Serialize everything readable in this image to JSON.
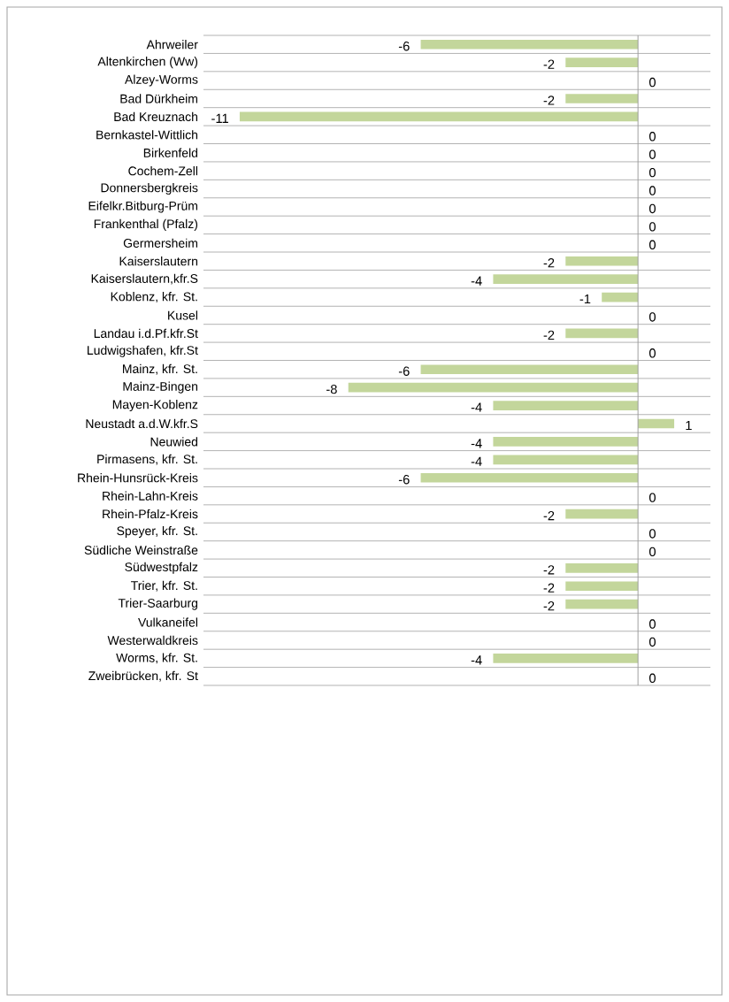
{
  "chart_data": {
    "type": "bar",
    "orientation": "horizontal",
    "color": "#c3d69b",
    "grid": "y",
    "tick_labels": "y",
    "data_labels": true,
    "categories": [
      "Ahrweiler",
      "Altenkirchen (Ww)",
      "Alzey-Worms",
      "Bad Dürkheim",
      "Bad Kreuznach",
      "Bernkastel-Wittlich",
      "Birkenfeld",
      "Cochem-Zell",
      "Donnersbergkreis",
      "Eifelkr.Bitburg-Prüm",
      "Frankenthal (Pfalz)",
      "Germersheim",
      "Kaiserslautern",
      "Kaiserslautern,kfr.S",
      "Koblenz, kfr. St.",
      "Kusel",
      "Landau i.d.Pf.kfr.St",
      "Ludwigshafen, kfr.St",
      "Mainz, kfr. St.",
      "Mainz-Bingen",
      "Mayen-Koblenz",
      "Neustadt a.d.W.kfr.S",
      "Neuwied",
      "Pirmasens, kfr. St.",
      "Rhein-Hunsrück-Kreis",
      "Rhein-Lahn-Kreis",
      "Rhein-Pfalz-Kreis",
      "Speyer, kfr. St.",
      "Südliche Weinstraße",
      "Südwestpfalz",
      "Trier, kfr. St.",
      "Trier-Saarburg",
      "Vulkaneifel",
      "Westerwaldkreis",
      "Worms, kfr. St.",
      "Zweibrücken, kfr. St"
    ],
    "values": [
      -6,
      -2,
      0,
      -2,
      -11,
      0,
      0,
      0,
      0,
      0,
      0,
      0,
      -2,
      -4,
      -1,
      0,
      -2,
      0,
      -6,
      -8,
      -4,
      1,
      -4,
      -4,
      -6,
      0,
      -2,
      0,
      0,
      -2,
      -2,
      -2,
      0,
      0,
      -4,
      0
    ]
  }
}
